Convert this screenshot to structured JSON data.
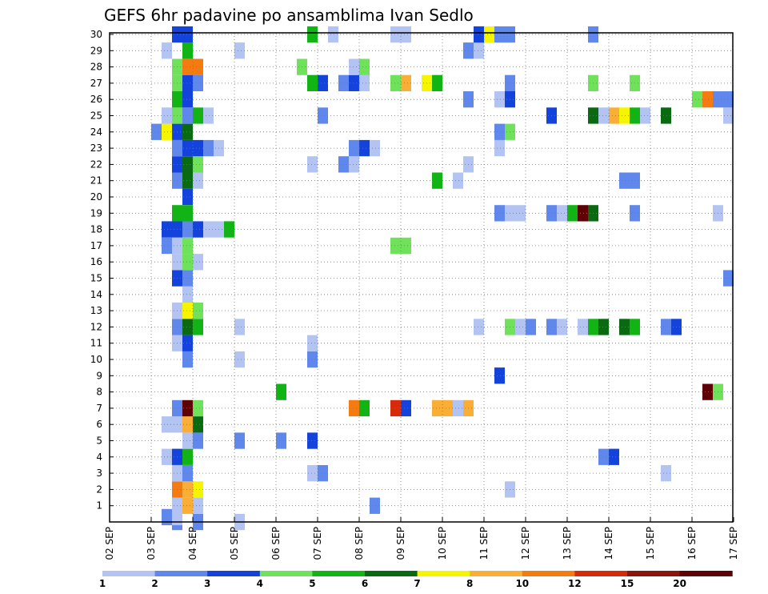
{
  "chart_data": {
    "type": "heatmap",
    "title": "GEFS 6hr padavine po ansamblima Ivan Sedlo",
    "x_tick_labels": [
      "02 SEP",
      "03 SEP",
      "04 SEP",
      "05 SEP",
      "06 SEP",
      "07 SEP",
      "08 SEP",
      "09 SEP",
      "10 SEP",
      "11 SEP",
      "12 SEP",
      "13 SEP",
      "14 SEP",
      "15 SEP",
      "16 SEP",
      "17 SEP"
    ],
    "y_tick_labels": [
      "1",
      "2",
      "3",
      "4",
      "5",
      "6",
      "7",
      "8",
      "9",
      "10",
      "11",
      "12",
      "13",
      "14",
      "15",
      "16",
      "17",
      "18",
      "19",
      "20",
      "21",
      "22",
      "23",
      "24",
      "25",
      "26",
      "27",
      "28",
      "29",
      "30"
    ],
    "grid": true,
    "legend_position": "bottom",
    "colorbar": {
      "labels": [
        "1",
        "2",
        "3",
        "4",
        "5",
        "6",
        "7",
        "8",
        "10",
        "12",
        "15",
        "20"
      ],
      "colors": [
        "#b4c4f2",
        "#5f87ec",
        "#1343da",
        "#6fe15a",
        "#12b315",
        "#0a6a12",
        "#f6f500",
        "#f9ae38",
        "#f47b11",
        "#d62b0b",
        "#8e1509",
        "#5e0005"
      ]
    },
    "cells": [
      [
        3.5,
        0,
        2
      ],
      [
        4.0,
        0,
        2
      ],
      [
        5.0,
        0,
        1
      ],
      [
        3.5,
        1,
        1
      ],
      [
        3.75,
        1,
        8
      ],
      [
        4.0,
        1,
        1
      ],
      [
        8.25,
        1,
        2
      ],
      [
        3.5,
        2,
        9
      ],
      [
        3.75,
        2,
        8
      ],
      [
        4.0,
        2,
        7
      ],
      [
        11.5,
        2,
        1
      ],
      [
        3.5,
        3,
        1
      ],
      [
        3.75,
        3,
        2
      ],
      [
        6.75,
        3,
        1
      ],
      [
        7.0,
        3,
        2
      ],
      [
        15.25,
        3,
        1
      ],
      [
        3.25,
        4,
        1
      ],
      [
        3.5,
        4,
        3
      ],
      [
        3.75,
        4,
        5
      ],
      [
        13.75,
        4,
        2
      ],
      [
        14.0,
        4,
        3
      ],
      [
        3.75,
        5,
        1
      ],
      [
        4.0,
        5,
        2
      ],
      [
        5.0,
        5,
        2
      ],
      [
        6.0,
        5,
        2
      ],
      [
        6.75,
        5,
        3
      ],
      [
        3.25,
        6,
        1
      ],
      [
        3.5,
        6,
        1
      ],
      [
        3.75,
        6,
        8
      ],
      [
        4.0,
        6,
        6
      ],
      [
        3.5,
        7,
        2
      ],
      [
        3.75,
        7,
        12
      ],
      [
        4.0,
        7,
        4
      ],
      [
        7.75,
        7,
        9
      ],
      [
        8.0,
        7,
        5
      ],
      [
        8.75,
        7,
        10
      ],
      [
        9.0,
        7,
        3
      ],
      [
        9.75,
        7,
        8
      ],
      [
        10.0,
        7,
        8
      ],
      [
        10.25,
        7,
        1
      ],
      [
        10.5,
        7,
        8
      ],
      [
        6.0,
        8,
        5
      ],
      [
        16.25,
        8,
        12
      ],
      [
        16.5,
        8,
        4
      ],
      [
        11.25,
        9,
        3
      ],
      [
        3.75,
        10,
        2
      ],
      [
        5.0,
        10,
        1
      ],
      [
        6.75,
        10,
        2
      ],
      [
        3.5,
        11,
        1
      ],
      [
        3.75,
        11,
        3
      ],
      [
        6.75,
        11,
        1
      ],
      [
        3.5,
        12,
        2
      ],
      [
        3.75,
        12,
        6
      ],
      [
        4.0,
        12,
        5
      ],
      [
        5.0,
        12,
        1
      ],
      [
        10.75,
        12,
        1
      ],
      [
        11.5,
        12,
        4
      ],
      [
        11.75,
        12,
        1
      ],
      [
        12.0,
        12,
        2
      ],
      [
        12.5,
        12,
        2
      ],
      [
        12.75,
        12,
        1
      ],
      [
        13.25,
        12,
        1
      ],
      [
        13.5,
        12,
        5
      ],
      [
        13.75,
        12,
        6
      ],
      [
        14.25,
        12,
        6
      ],
      [
        14.5,
        12,
        5
      ],
      [
        15.25,
        12,
        2
      ],
      [
        15.5,
        12,
        3
      ],
      [
        3.5,
        13,
        1
      ],
      [
        3.75,
        13,
        7
      ],
      [
        4.0,
        13,
        4
      ],
      [
        3.75,
        14,
        1
      ],
      [
        3.5,
        15,
        3
      ],
      [
        3.75,
        15,
        2
      ],
      [
        16.75,
        15,
        2
      ],
      [
        3.5,
        16,
        1
      ],
      [
        3.75,
        16,
        4
      ],
      [
        4.0,
        16,
        1
      ],
      [
        3.25,
        17,
        2
      ],
      [
        3.5,
        17,
        1
      ],
      [
        3.75,
        17,
        4
      ],
      [
        8.75,
        17,
        4
      ],
      [
        9.0,
        17,
        4
      ],
      [
        3.25,
        18,
        3
      ],
      [
        3.5,
        18,
        3
      ],
      [
        3.75,
        18,
        2
      ],
      [
        4.0,
        18,
        3
      ],
      [
        4.25,
        18,
        1
      ],
      [
        4.5,
        18,
        1
      ],
      [
        4.75,
        18,
        5
      ],
      [
        3.5,
        19,
        5
      ],
      [
        3.75,
        19,
        5
      ],
      [
        11.25,
        19,
        2
      ],
      [
        11.5,
        19,
        1
      ],
      [
        11.75,
        19,
        1
      ],
      [
        12.5,
        19,
        2
      ],
      [
        12.75,
        19,
        1
      ],
      [
        13.0,
        19,
        5
      ],
      [
        13.25,
        19,
        12
      ],
      [
        13.5,
        19,
        6
      ],
      [
        14.5,
        19,
        2
      ],
      [
        16.5,
        19,
        1
      ],
      [
        3.75,
        20,
        3
      ],
      [
        3.5,
        21,
        2
      ],
      [
        3.75,
        21,
        6
      ],
      [
        4.0,
        21,
        1
      ],
      [
        9.75,
        21,
        5
      ],
      [
        10.25,
        21,
        1
      ],
      [
        14.25,
        21,
        2
      ],
      [
        14.5,
        21,
        2
      ],
      [
        3.5,
        22,
        3
      ],
      [
        3.75,
        22,
        6
      ],
      [
        4.0,
        22,
        4
      ],
      [
        6.75,
        22,
        1
      ],
      [
        7.5,
        22,
        2
      ],
      [
        7.75,
        22,
        1
      ],
      [
        10.5,
        22,
        1
      ],
      [
        3.5,
        23,
        2
      ],
      [
        3.75,
        23,
        3
      ],
      [
        4.0,
        23,
        3
      ],
      [
        4.25,
        23,
        2
      ],
      [
        4.5,
        23,
        1
      ],
      [
        7.75,
        23,
        2
      ],
      [
        8.0,
        23,
        3
      ],
      [
        8.25,
        23,
        1
      ],
      [
        11.25,
        23,
        1
      ],
      [
        3.0,
        24,
        2
      ],
      [
        3.25,
        24,
        7
      ],
      [
        3.5,
        24,
        3
      ],
      [
        3.75,
        24,
        6
      ],
      [
        11.25,
        24,
        2
      ],
      [
        11.5,
        24,
        4
      ],
      [
        3.25,
        25,
        1
      ],
      [
        3.5,
        25,
        4
      ],
      [
        3.75,
        25,
        2
      ],
      [
        4.0,
        25,
        5
      ],
      [
        4.25,
        25,
        1
      ],
      [
        7.0,
        25,
        2
      ],
      [
        12.5,
        25,
        3
      ],
      [
        13.5,
        25,
        6
      ],
      [
        13.75,
        25,
        1
      ],
      [
        14.0,
        25,
        8
      ],
      [
        14.25,
        25,
        7
      ],
      [
        14.5,
        25,
        5
      ],
      [
        14.75,
        25,
        1
      ],
      [
        15.25,
        25,
        6
      ],
      [
        16.75,
        25,
        1
      ],
      [
        3.5,
        26,
        5
      ],
      [
        3.75,
        26,
        3
      ],
      [
        10.5,
        26,
        2
      ],
      [
        11.25,
        26,
        1
      ],
      [
        11.5,
        26,
        3
      ],
      [
        16.0,
        26,
        4
      ],
      [
        16.25,
        26,
        9
      ],
      [
        16.5,
        26,
        2
      ],
      [
        16.75,
        26,
        2
      ],
      [
        3.5,
        27,
        4
      ],
      [
        3.75,
        27,
        3
      ],
      [
        4.0,
        27,
        2
      ],
      [
        6.75,
        27,
        5
      ],
      [
        7.0,
        27,
        3
      ],
      [
        7.5,
        27,
        2
      ],
      [
        7.75,
        27,
        3
      ],
      [
        8.0,
        27,
        1
      ],
      [
        8.75,
        27,
        4
      ],
      [
        9.0,
        27,
        8
      ],
      [
        9.5,
        27,
        7
      ],
      [
        9.75,
        27,
        5
      ],
      [
        11.5,
        27,
        2
      ],
      [
        13.5,
        27,
        4
      ],
      [
        14.5,
        27,
        4
      ],
      [
        3.5,
        28,
        4
      ],
      [
        3.75,
        28,
        9
      ],
      [
        4.0,
        28,
        9
      ],
      [
        6.5,
        28,
        4
      ],
      [
        7.75,
        28,
        1
      ],
      [
        8.0,
        28,
        4
      ],
      [
        3.25,
        29,
        1
      ],
      [
        3.75,
        29,
        5
      ],
      [
        5.0,
        29,
        1
      ],
      [
        10.5,
        29,
        2
      ],
      [
        10.75,
        29,
        1
      ],
      [
        3.5,
        30,
        3
      ],
      [
        3.75,
        30,
        3
      ],
      [
        6.75,
        30,
        5
      ],
      [
        7.25,
        30,
        1
      ],
      [
        8.75,
        30,
        1
      ],
      [
        9.0,
        30,
        1
      ],
      [
        10.75,
        30,
        3
      ],
      [
        11.0,
        30,
        7
      ],
      [
        11.25,
        30,
        2
      ],
      [
        11.5,
        30,
        2
      ],
      [
        13.5,
        30,
        2
      ],
      [
        3.25,
        0.3,
        2
      ],
      [
        3.5,
        0.3,
        1
      ]
    ]
  }
}
